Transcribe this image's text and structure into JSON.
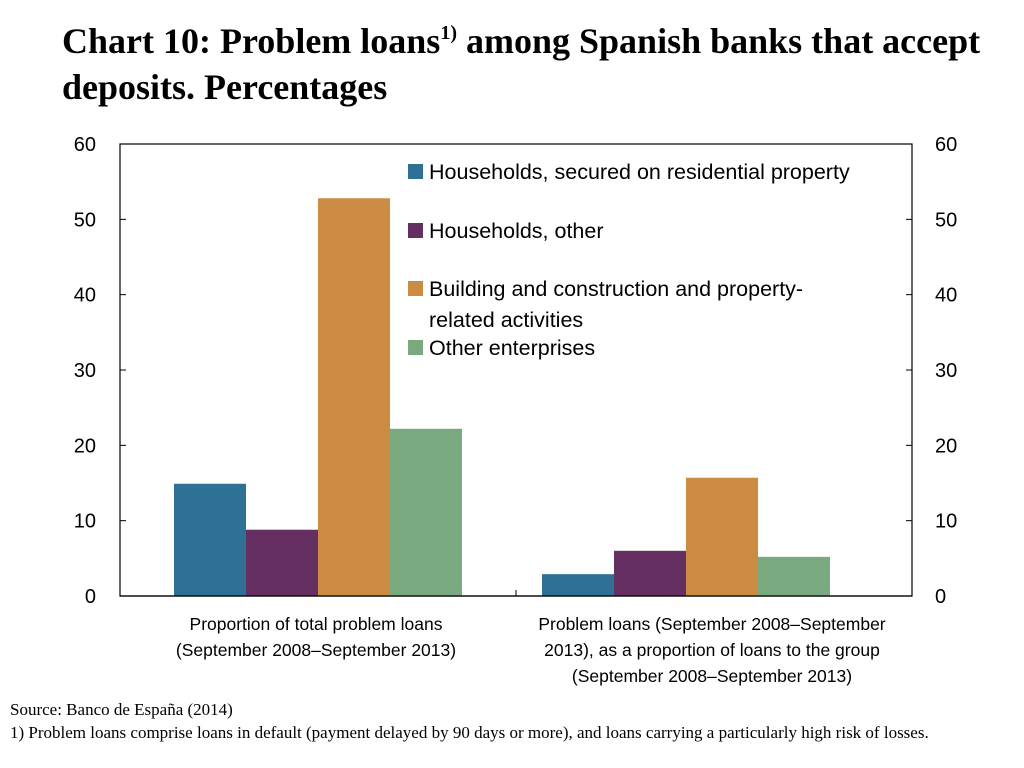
{
  "title": {
    "part1": "Chart 10: Problem loans",
    "sup": "1)",
    "part2": " among Spanish banks that accept deposits. Percentages"
  },
  "chart_data": {
    "type": "bar",
    "ylim": [
      0,
      60
    ],
    "yticks": [
      "0",
      "10",
      "20",
      "30",
      "40",
      "50",
      "60"
    ],
    "categories": [
      [
        "Proportion of total problem loans",
        "(September 2008–September 2013)"
      ],
      [
        "Problem loans (September 2008–September",
        "2013), as a proportion of loans to the group",
        "(September 2008–September 2013)"
      ]
    ],
    "series": [
      {
        "name": "Households, secured on residential property",
        "color": "#2e7096",
        "values": [
          14.9,
          2.9
        ]
      },
      {
        "name": "Households, other",
        "color": "#652f61",
        "values": [
          8.8,
          6.0
        ]
      },
      {
        "name": "Building and construction and property-related activities",
        "legend_lines": [
          "Building and construction and property-",
          "related activities"
        ],
        "color": "#cc8b43",
        "values": [
          52.8,
          15.7
        ]
      },
      {
        "name": "Other enterprises",
        "color": "#7aa87f",
        "values": [
          22.2,
          5.2
        ]
      }
    ],
    "legend_position": "top-right",
    "grid": false
  },
  "source": "Source: Banco de España (2014)",
  "footnote": "1) Problem loans comprise loans in default (payment delayed by 90 days or more), and loans carrying a particularly high risk of losses."
}
